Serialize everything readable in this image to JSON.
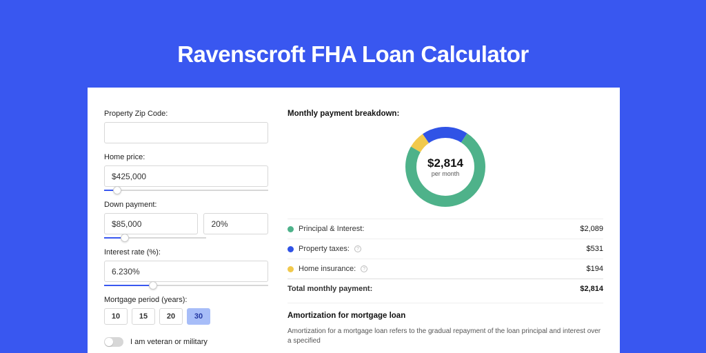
{
  "page": {
    "title": "Ravenscroft FHA Loan Calculator",
    "bg_color": "#3957f0"
  },
  "form": {
    "zip": {
      "label": "Property Zip Code:",
      "value": ""
    },
    "home_price": {
      "label": "Home price:",
      "value": "$425,000",
      "slider_pct": 8
    },
    "down_payment": {
      "label": "Down payment:",
      "value": "$85,000",
      "pct_value": "20%",
      "slider_pct": 20
    },
    "interest_rate": {
      "label": "Interest rate (%):",
      "value": "6.230%",
      "slider_pct": 30
    },
    "period": {
      "label": "Mortgage period (years):",
      "options": [
        "10",
        "15",
        "20",
        "30"
      ],
      "active_index": 3
    },
    "veteran": {
      "label": "I am veteran or military",
      "checked": false
    }
  },
  "breakdown": {
    "title": "Monthly payment breakdown:",
    "center_amount": "$2,814",
    "center_sub": "per month",
    "items": [
      {
        "label": "Principal & Interest:",
        "value": "$2,089",
        "color": "#4eb28a",
        "info": false
      },
      {
        "label": "Property taxes:",
        "value": "$531",
        "color": "#3053e6",
        "info": true
      },
      {
        "label": "Home insurance:",
        "value": "$194",
        "color": "#f1c94c",
        "info": true
      }
    ],
    "total": {
      "label": "Total monthly payment:",
      "value": "$2,814"
    },
    "donut": {
      "segments": [
        {
          "color": "#4eb28a",
          "fraction": 0.742
        },
        {
          "color": "#3053e6",
          "fraction": 0.189
        },
        {
          "color": "#f1c94c",
          "fraction": 0.069
        }
      ],
      "stroke_width": 16
    }
  },
  "amortization": {
    "title": "Amortization for mortgage loan",
    "text": "Amortization for a mortgage loan refers to the gradual repayment of the loan principal and interest over a specified"
  }
}
